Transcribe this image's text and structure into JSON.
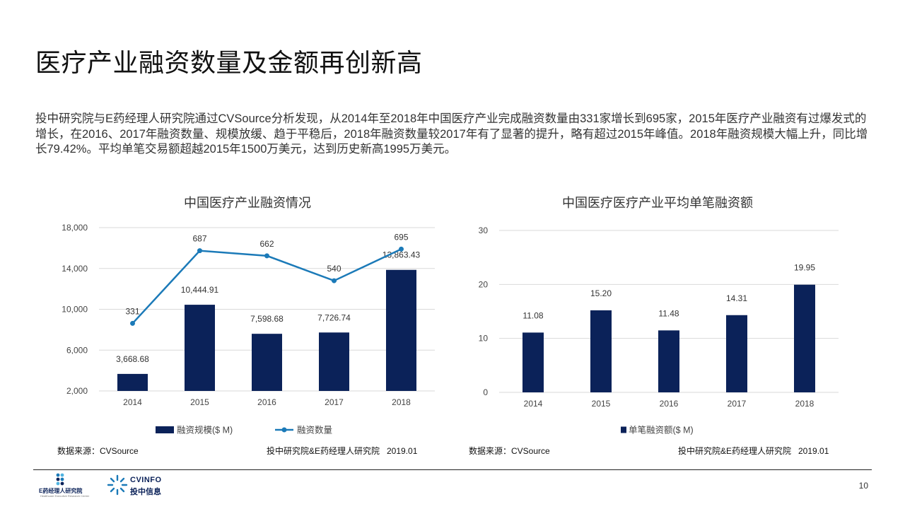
{
  "page": {
    "title": "医疗产业融资数量及金额再创新高",
    "summary": "投中研究院与E药经理人研究院通过CVSource分析发现，从2014年至2018年中国医疗产业完成融资数量由331家增长到695家，2015年医疗产业融资有过爆发式的增长，在2016、2017年融资数量、规模放缓、趋于平稳后，2018年融资数量较2017年有了显著的提升，略有超过2015年峰值。2018年融资规模大幅上升，同比增长79.42%。平均单笔交易额超越2015年1500万美元，达到历史新高1995万美元。",
    "page_number": "10"
  },
  "logos": {
    "left_text": "E药经理人研究院",
    "left_subtext": "Healthcare Executive Research Center",
    "right_text_top": "CVINFO",
    "right_text_bottom": "投中信息"
  },
  "colors": {
    "bar": "#0b2259",
    "line": "#1b7ab8",
    "grid": "#d9d9d9"
  },
  "chart_data": [
    {
      "type": "bar",
      "title": "中国医疗产业融资情况",
      "categories": [
        "2014",
        "2015",
        "2016",
        "2017",
        "2018"
      ],
      "series": [
        {
          "name": "融资规模($ M)",
          "type": "bar",
          "values": [
            3668.68,
            10444.91,
            7598.68,
            7726.74,
            13863.43
          ],
          "labels": [
            "3,668.68",
            "10,444.91",
            "7,598.68",
            "7,726.74",
            "13,863.43"
          ]
        },
        {
          "name": "融资数量",
          "type": "line",
          "values": [
            331,
            687,
            662,
            540,
            695
          ],
          "labels": [
            "331",
            "687",
            "662",
            "540",
            "695"
          ]
        }
      ],
      "ylim": [
        2000,
        18000
      ],
      "yticks": [
        "2,000",
        "6,000",
        "10,000",
        "14,000",
        "18,000"
      ],
      "ytick_values": [
        2000,
        6000,
        10000,
        14000,
        18000
      ],
      "secondary_ylim": [
        0,
        800
      ],
      "grid": true,
      "legend": "bottom",
      "source_left": "数据来源：CVSource",
      "source_right": "投中研究院&E药经理人研究院   2019.01"
    },
    {
      "type": "bar",
      "title": "中国医疗医疗产业平均单笔融资额",
      "categories": [
        "2014",
        "2015",
        "2016",
        "2017",
        "2018"
      ],
      "series": [
        {
          "name": "单笔融资额($ M)",
          "values": [
            11.08,
            15.2,
            11.48,
            14.31,
            19.95
          ],
          "labels": [
            "11.08",
            "15.20",
            "11.48",
            "14.31",
            "19.95"
          ]
        }
      ],
      "ylim": [
        0,
        30
      ],
      "yticks": [
        "0",
        "10",
        "20",
        "30"
      ],
      "ytick_values": [
        0,
        10,
        20,
        30
      ],
      "grid": true,
      "legend": "bottom",
      "source_left": "数据来源：CVSource",
      "source_right": "投中研究院&E药经理人研究院   2019.01"
    }
  ]
}
